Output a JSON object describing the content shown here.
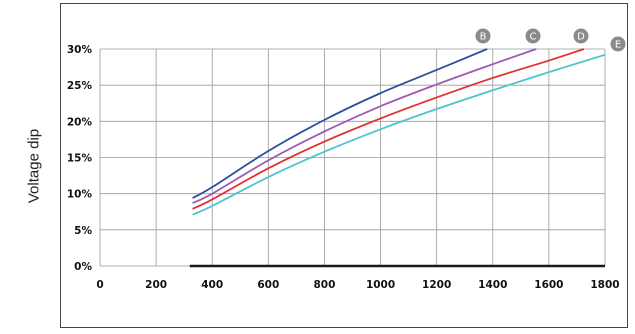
{
  "chart_data": {
    "type": "line",
    "title": "",
    "xlabel": "",
    "ylabel": "Voltage dip",
    "xlim": [
      0,
      1800
    ],
    "ylim": [
      0,
      30
    ],
    "x_ticks": [
      "0",
      "200",
      "400",
      "600",
      "800",
      "1000",
      "1200",
      "1400",
      "1600",
      "1800"
    ],
    "y_ticks": [
      "0%",
      "5%",
      "10%",
      "15%",
      "20%",
      "25%",
      "30%"
    ],
    "grid": true,
    "legend": "curve end labels",
    "series": [
      {
        "name": "B",
        "color": "#2b4f9e",
        "x": [
          330,
          400,
          600,
          800,
          1000,
          1200,
          1380
        ],
        "y": [
          9.4,
          10.9,
          15.9,
          20.2,
          23.9,
          27.1,
          30.0
        ]
      },
      {
        "name": "C",
        "color": "#a05ab5",
        "x": [
          330,
          400,
          600,
          800,
          1000,
          1200,
          1400,
          1555
        ],
        "y": [
          8.7,
          10.0,
          14.6,
          18.6,
          22.1,
          25.1,
          27.9,
          30.0
        ]
      },
      {
        "name": "D",
        "color": "#e3302f",
        "x": [
          330,
          400,
          600,
          800,
          1000,
          1200,
          1400,
          1600,
          1725
        ],
        "y": [
          7.9,
          9.2,
          13.5,
          17.2,
          20.4,
          23.3,
          26.0,
          28.4,
          30.0
        ]
      },
      {
        "name": "E",
        "color": "#4fc3cf",
        "x": [
          330,
          400,
          600,
          800,
          1000,
          1200,
          1400,
          1600,
          1800
        ],
        "y": [
          7.1,
          8.3,
          12.3,
          15.8,
          18.9,
          21.7,
          24.3,
          26.8,
          29.2
        ]
      }
    ]
  }
}
